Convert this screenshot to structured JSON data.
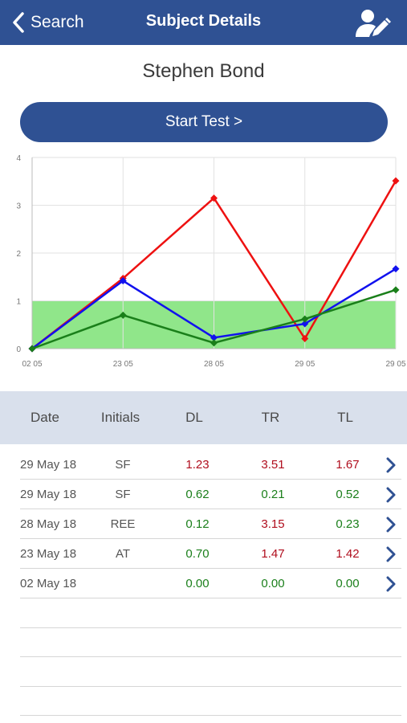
{
  "navbar": {
    "back_label": "Search",
    "title": "Subject Details",
    "edit_icon": "user-edit-icon",
    "color": "#2f5193"
  },
  "subject": {
    "name": "Stephen Bond"
  },
  "start_button": {
    "label": "Start Test >"
  },
  "chart_data": {
    "type": "line",
    "categories": [
      "02 05",
      "23 05",
      "28 05",
      "29 05",
      "29 05"
    ],
    "y_ticks": [
      "0",
      "1",
      "2",
      "3",
      "4"
    ],
    "ylim": [
      0,
      4
    ],
    "band": {
      "from": 0,
      "to": 1,
      "color": "#90e68a"
    },
    "grid": true,
    "series": [
      {
        "color": "#ee1111",
        "values": [
          0.0,
          1.47,
          3.15,
          0.21,
          3.51
        ]
      },
      {
        "color": "#1111ee",
        "values": [
          0.0,
          1.42,
          0.23,
          0.52,
          1.67
        ]
      },
      {
        "color": "#1a7f1a",
        "values": [
          0.0,
          0.7,
          0.12,
          0.62,
          1.23
        ]
      }
    ]
  },
  "table": {
    "headers": {
      "date": "Date",
      "initials": "Initials",
      "dl": "DL",
      "tr": "TR",
      "tl": "TL"
    },
    "rows": [
      {
        "date": "29 May 18",
        "initials": "SF",
        "dl": "1.23",
        "tr": "3.51",
        "tl": "1.67",
        "dl_status": "red",
        "tr_status": "red",
        "tl_status": "red"
      },
      {
        "date": "29 May 18",
        "initials": "SF",
        "dl": "0.62",
        "tr": "0.21",
        "tl": "0.52",
        "dl_status": "green",
        "tr_status": "green",
        "tl_status": "green"
      },
      {
        "date": "28 May 18",
        "initials": "REE",
        "dl": "0.12",
        "tr": "3.15",
        "tl": "0.23",
        "dl_status": "green",
        "tr_status": "red",
        "tl_status": "green"
      },
      {
        "date": "23 May 18",
        "initials": "AT",
        "dl": "0.70",
        "tr": "1.47",
        "tl": "1.42",
        "dl_status": "green",
        "tr_status": "red",
        "tl_status": "red"
      },
      {
        "date": "02 May 18",
        "initials": "",
        "dl": "0.00",
        "tr": "0.00",
        "tl": "0.00",
        "dl_status": "green",
        "tr_status": "green",
        "tl_status": "green"
      }
    ],
    "row_icon": "chevron-right-icon"
  },
  "status_colors": {
    "red": "#b00e1e",
    "green": "#1b7f1b"
  }
}
